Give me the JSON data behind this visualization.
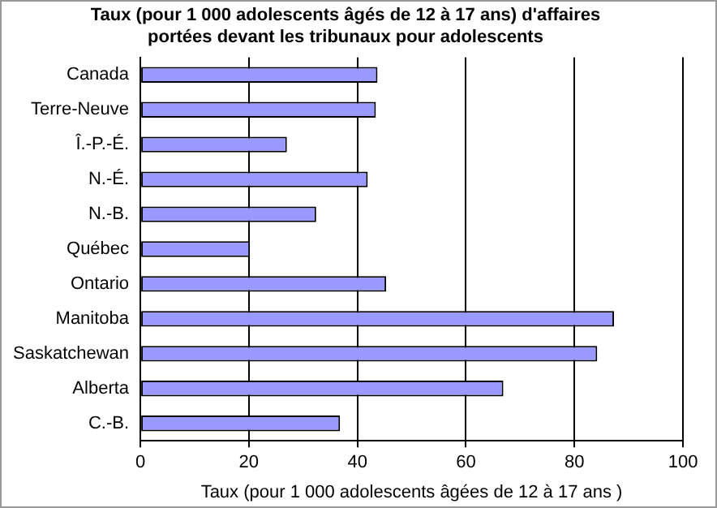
{
  "chart_data": {
    "type": "bar",
    "orientation": "horizontal",
    "title": [
      "Taux (pour 1 000 adolescents âgés de 12 à 17 ans) d'affaires",
      "portées devant les tribunaux pour adolescents"
    ],
    "xlabel": "Taux (pour 1 000 adolescents âgées de 12 à 17 ans )",
    "categories": [
      "Canada",
      "Terre-Neuve",
      "Î.-P.-É.",
      "N.-É.",
      "N.-B.",
      "Québec",
      "Ontario",
      "Manitoba",
      "Saskatchewan",
      "Alberta",
      "C.-B."
    ],
    "values": [
      43.7,
      43.4,
      27,
      41.9,
      32.4,
      20.2,
      45.3,
      87.3,
      84.2,
      66.9,
      36.8
    ],
    "color": "#9999ff",
    "xlim": [
      0,
      100
    ],
    "xticks": [
      0,
      20,
      40,
      60,
      80,
      100
    ],
    "grid": "x",
    "legend": false
  }
}
